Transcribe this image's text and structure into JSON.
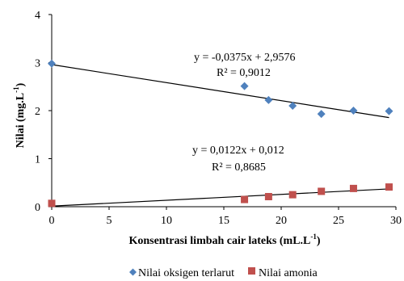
{
  "chart_data": {
    "type": "scatter",
    "title": "",
    "xlabel": "Konsentrasi limbah cair lateks (mL.L",
    "xlabel_sup": "-1",
    "xlabel_end": ")",
    "ylabel": "Nilai (mg.L",
    "ylabel_sup": "-1",
    "ylabel_end": ")",
    "xlim": [
      0,
      30
    ],
    "ylim": [
      0,
      4
    ],
    "xticks": [
      "0",
      "5",
      "10",
      "15",
      "20",
      "25",
      "30"
    ],
    "yticks": [
      "0",
      "1",
      "2",
      "3",
      "4"
    ],
    "grid": false,
    "legend_position": "bottom",
    "series": [
      {
        "name": "Nilai oksigen terlarut",
        "marker": "diamond",
        "color": "#4f81bd",
        "x": [
          0,
          16.8,
          18.9,
          21.0,
          23.5,
          26.3,
          29.4
        ],
        "y": [
          2.98,
          2.51,
          2.22,
          2.1,
          1.93,
          2.0,
          1.99
        ],
        "trendline": {
          "slope": -0.0375,
          "intercept": 2.9576,
          "x_range": [
            0,
            29.4
          ]
        },
        "equation": "y = -0,0375x + 2,9576",
        "r2": "R² = 0,9012"
      },
      {
        "name": "Nilai amonia",
        "marker": "square",
        "color": "#c0504d",
        "x": [
          0,
          16.8,
          18.9,
          21.0,
          23.5,
          26.3,
          29.4
        ],
        "y": [
          0.07,
          0.15,
          0.21,
          0.25,
          0.32,
          0.38,
          0.41
        ],
        "trendline": {
          "slope": 0.0122,
          "intercept": 0.012,
          "x_range": [
            0,
            29.4
          ]
        },
        "equation": "y = 0,0122x + 0,012",
        "r2": "R² = 0,8685"
      }
    ]
  }
}
